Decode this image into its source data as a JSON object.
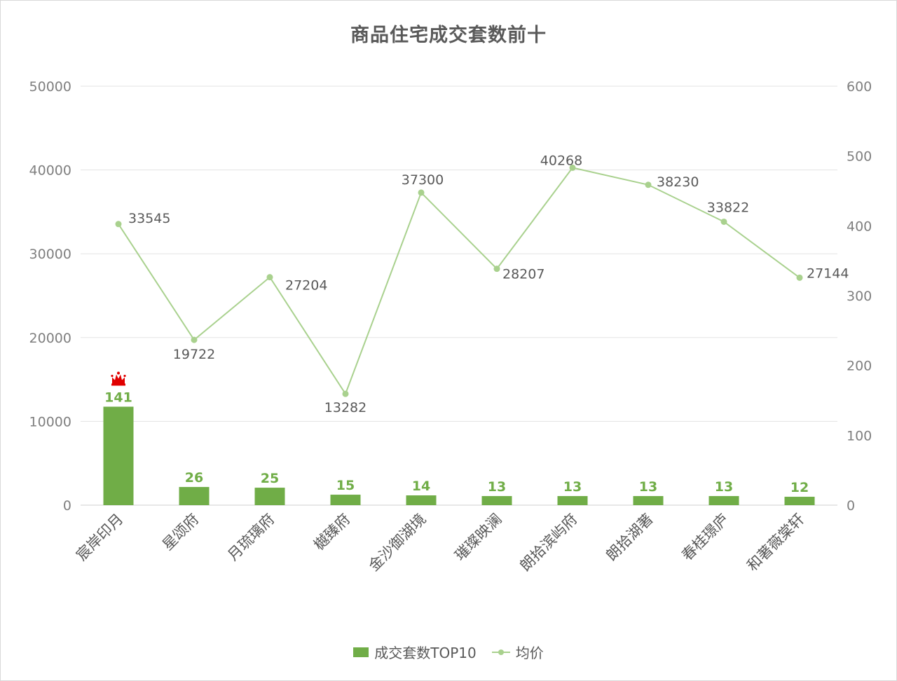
{
  "chart_data": {
    "type": "bar",
    "title": "商品住宅成交套数前十",
    "categories": [
      "宸岸印月",
      "星颂府",
      "月琉璃府",
      "樾臻府",
      "金沙御湖境",
      "璀璨映澜",
      "朗拾滨屿府",
      "朗拾湖著",
      "春桂璟庐",
      "和著薇棠轩"
    ],
    "series": [
      {
        "name": "成交套数TOP10",
        "type": "bar",
        "axis": "right",
        "color": "#70ad47",
        "values": [
          141,
          26,
          25,
          15,
          14,
          13,
          13,
          13,
          13,
          12
        ]
      },
      {
        "name": "均价",
        "type": "line",
        "axis": "left",
        "color": "#a9d18e",
        "values": [
          33545,
          19722,
          27204,
          13282,
          37300,
          28207,
          40268,
          38230,
          33822,
          27144
        ]
      }
    ],
    "y_left": {
      "min": 0,
      "max": 50000,
      "ticks": [
        "0",
        "10000",
        "20000",
        "30000",
        "40000",
        "50000"
      ]
    },
    "y_right": {
      "min": 0,
      "max": 600,
      "ticks": [
        "0",
        "100",
        "200",
        "300",
        "400",
        "500",
        "600"
      ]
    },
    "grid": true,
    "legend": "bottom",
    "crown_on": "宸岸印月",
    "crown_color": "#e00000"
  },
  "legend": {
    "bar_label": "成交套数TOP10",
    "line_label": "均价"
  }
}
